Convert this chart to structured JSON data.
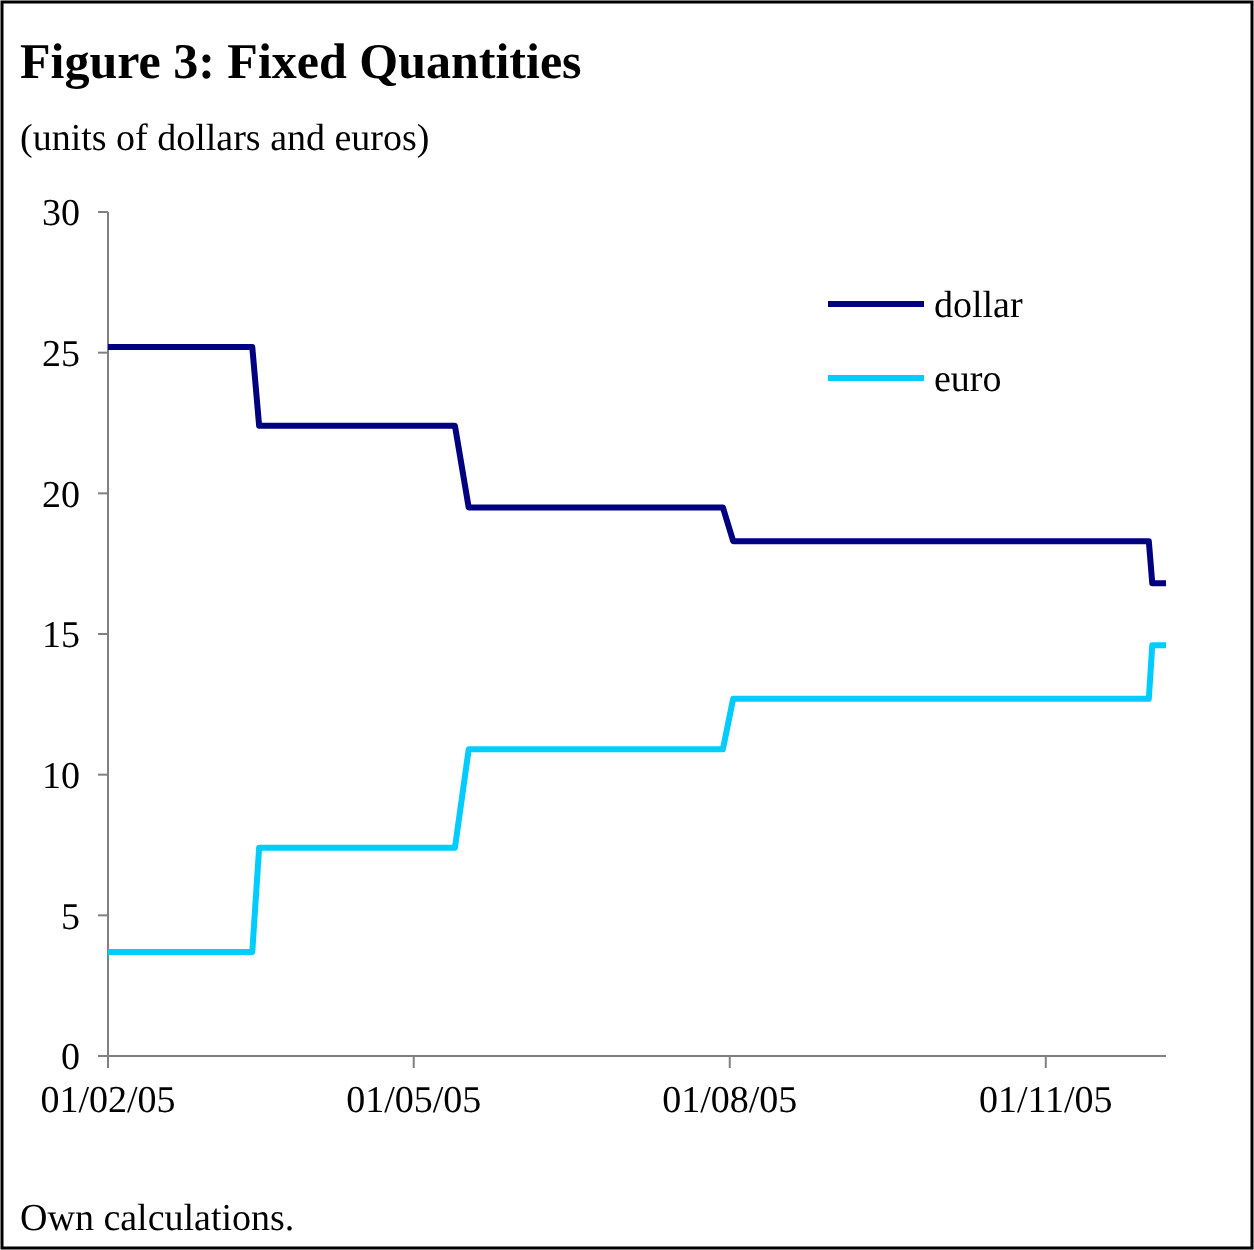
{
  "chart_data": {
    "type": "line",
    "title": "Figure 3: Fixed Quantities",
    "subtitle": "(units of dollars and euros)",
    "annotations": [
      "Own calculations."
    ],
    "x": [
      "2005-02-01",
      "2005-03-15",
      "2005-03-17",
      "2005-05-13",
      "2005-05-17",
      "2005-07-30",
      "2005-08-02",
      "2005-12-01",
      "2005-12-02",
      "2005-12-06"
    ],
    "series": [
      {
        "name": "dollar",
        "color": "#000080",
        "values": [
          25.2,
          25.2,
          22.4,
          22.4,
          19.5,
          19.5,
          18.3,
          18.3,
          16.8,
          16.8
        ]
      },
      {
        "name": "euro",
        "color": "#00ccff",
        "values": [
          3.7,
          3.7,
          7.4,
          7.4,
          10.9,
          10.9,
          12.7,
          12.7,
          14.6,
          14.6
        ]
      }
    ],
    "xlim": [
      "2005-02-01",
      "2005-12-06"
    ],
    "xticks": [
      {
        "value": "2005-02-01",
        "label": "01/02/05"
      },
      {
        "value": "2005-05-01",
        "label": "01/05/05"
      },
      {
        "value": "2005-08-01",
        "label": "01/08/05"
      },
      {
        "value": "2005-11-01",
        "label": "01/11/05"
      }
    ],
    "ylim": [
      0,
      30
    ],
    "yticks": [
      0,
      5,
      10,
      15,
      20,
      25,
      30
    ],
    "grid": false,
    "legend": "top right",
    "marker": "none",
    "line_style": "solid"
  }
}
